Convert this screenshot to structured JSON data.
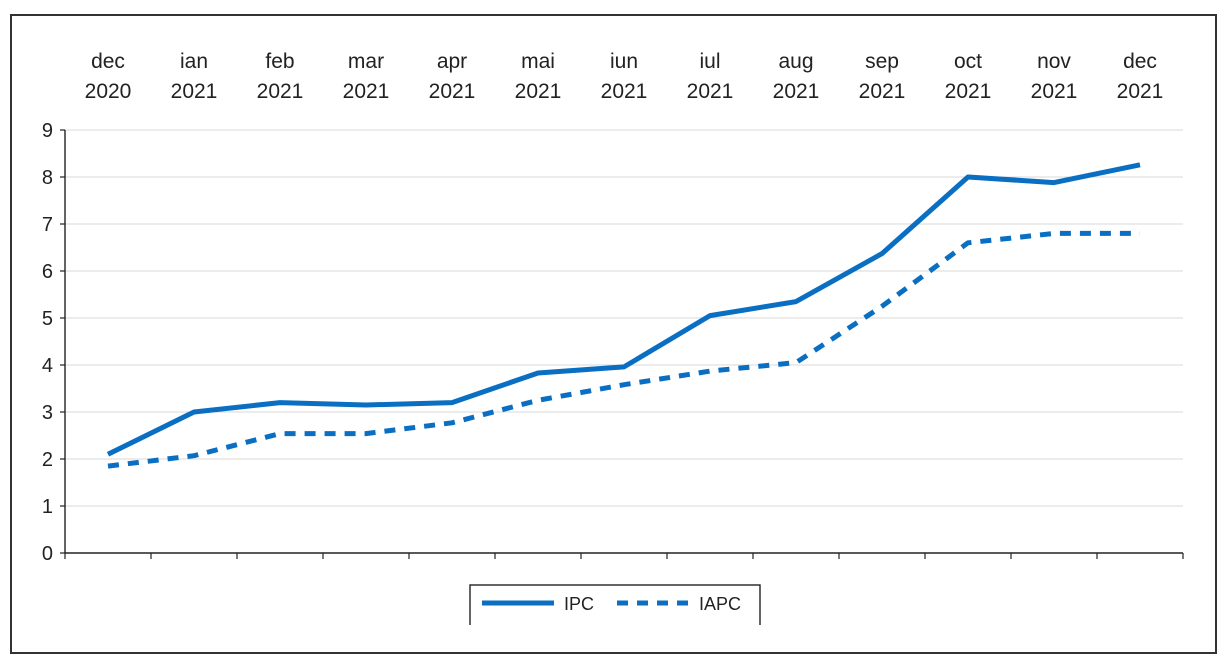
{
  "chart_data": {
    "type": "line",
    "categories": [
      [
        "dec",
        "2020"
      ],
      [
        "ian",
        "2021"
      ],
      [
        "feb",
        "2021"
      ],
      [
        "mar",
        "2021"
      ],
      [
        "apr",
        "2021"
      ],
      [
        "mai",
        "2021"
      ],
      [
        "iun",
        "2021"
      ],
      [
        "iul",
        "2021"
      ],
      [
        "aug",
        "2021"
      ],
      [
        "sep",
        "2021"
      ],
      [
        "oct",
        "2021"
      ],
      [
        "nov",
        "2021"
      ],
      [
        "dec",
        "2021"
      ]
    ],
    "yticks": [
      "0",
      "1",
      "2",
      "3",
      "4",
      "5",
      "6",
      "7",
      "8",
      "9"
    ],
    "ylim": [
      0,
      9
    ],
    "grid": true,
    "legend_position": "bottom-center",
    "series": [
      {
        "name": "IPC",
        "style": "solid",
        "color": "#0a6fc2",
        "values": [
          2.1,
          3.0,
          3.2,
          3.15,
          3.2,
          3.83,
          3.96,
          5.05,
          5.35,
          6.37,
          8.0,
          7.88,
          8.26
        ]
      },
      {
        "name": "IAPC",
        "style": "dashed",
        "color": "#0a6fc2",
        "values": [
          1.85,
          2.07,
          2.54,
          2.54,
          2.77,
          3.25,
          3.58,
          3.87,
          4.05,
          5.25,
          6.6,
          6.8,
          6.8
        ]
      }
    ]
  }
}
